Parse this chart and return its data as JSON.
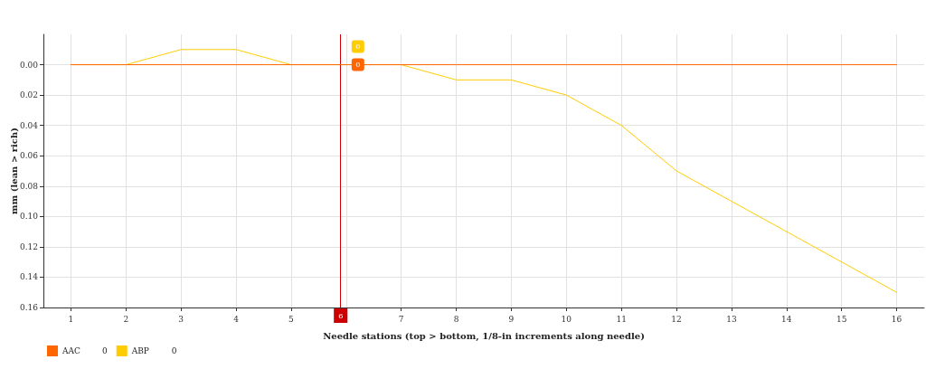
{
  "chart_data": {
    "type": "line",
    "xlabel": "Needle stations (top > bottom, 1/8-in increments along needle)",
    "ylabel": "mm (lean > rich)",
    "x": [
      1,
      2,
      3,
      4,
      5,
      6,
      7,
      8,
      9,
      10,
      11,
      12,
      13,
      14,
      15,
      16
    ],
    "xlim": [
      0.5,
      16.5
    ],
    "xticks": [
      1,
      2,
      3,
      4,
      5,
      {
        "value": 6,
        "label": null
      },
      7,
      8,
      9,
      10,
      11,
      12,
      13,
      14,
      15,
      16
    ],
    "ylim": [
      0.16,
      -0.02
    ],
    "yticks": [
      {
        "value": 0,
        "label": "0.00"
      },
      0.02,
      0.04,
      0.06,
      0.08,
      {
        "value": 0.1,
        "label": "0.10"
      },
      0.12,
      0.14,
      0.16
    ],
    "series": [
      {
        "name": "AAC",
        "color": "#ff6600",
        "values": [
          0,
          0,
          0,
          0,
          0,
          0,
          0,
          0,
          0,
          0,
          0,
          0,
          0,
          0,
          0,
          0
        ]
      },
      {
        "name": "ABP",
        "color": "#ffcc00",
        "values": [
          0,
          0,
          -0.01,
          -0.01,
          0,
          0,
          0,
          0.01,
          0.01,
          0.02,
          0.04,
          0.07,
          0.09,
          0.11,
          0.13,
          0.15
        ]
      }
    ],
    "ref_lines": [
      {
        "axis": "x",
        "value": 5.9,
        "label": "6",
        "color": "#cc0000"
      }
    ],
    "annotations": [
      {
        "text": "0",
        "x": 6,
        "y": 0
      },
      {
        "text": "0",
        "x": 6,
        "y": 0
      }
    ],
    "grid": true,
    "legend": "bottom left",
    "marker": "none",
    "line_style": "solid"
  }
}
